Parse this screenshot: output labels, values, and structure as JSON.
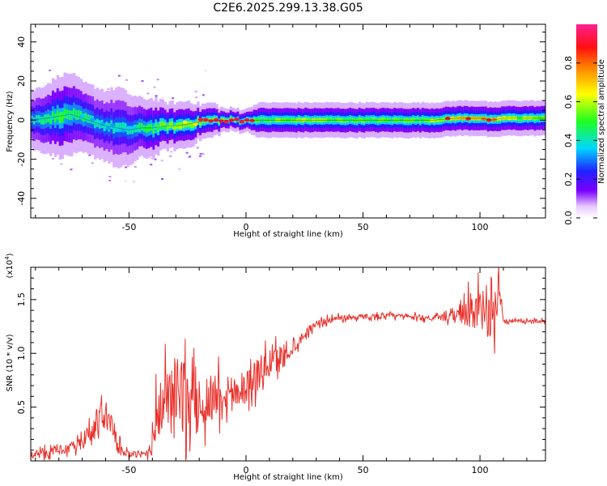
{
  "title": "C2E6.2025.299.13.38.G05",
  "chart_data": [
    {
      "type": "heatmap",
      "name": "spectrogram",
      "xlabel": "Height of straight line (km)",
      "ylabel": "Frequency (Hz)",
      "xlim": [
        -92,
        128
      ],
      "ylim": [
        -50,
        49
      ],
      "xticks": [
        -50,
        0,
        50,
        100
      ],
      "yticks": [
        -40,
        -20,
        0,
        20,
        40
      ],
      "colorbar": {
        "label": "Normalized spectral amplitude",
        "range": [
          0,
          1
        ],
        "ticks": [
          0.0,
          0.2,
          0.4,
          0.6,
          0.8
        ]
      },
      "ridge": {
        "x": [
          -92,
          -85,
          -80,
          -75,
          -70,
          -65,
          -60,
          -55,
          -50,
          -45,
          -40,
          -35,
          -30,
          -25,
          -20,
          -15,
          -10,
          -5,
          0,
          5,
          10,
          20,
          30,
          40,
          50,
          60,
          70,
          80,
          90,
          100,
          105,
          110,
          120,
          128
        ],
        "freq": [
          0,
          1,
          2,
          3,
          1,
          -1,
          -3,
          -4,
          -5,
          -4,
          -4,
          -3,
          -3,
          -2,
          -1,
          0,
          0,
          0,
          0,
          0,
          0,
          0,
          0,
          0,
          0,
          0,
          0,
          0,
          1,
          1,
          0,
          1,
          1,
          1
        ],
        "spread": [
          5,
          6,
          7,
          7,
          6,
          6,
          6,
          7,
          6,
          5,
          5,
          4,
          4,
          4,
          3,
          3,
          2,
          2,
          2,
          3,
          3,
          3,
          3,
          3,
          3,
          3,
          3,
          3,
          3,
          3,
          3,
          3,
          3,
          3
        ],
        "amplitude": [
          0.35,
          0.4,
          0.45,
          0.4,
          0.4,
          0.35,
          0.35,
          0.35,
          0.35,
          0.4,
          0.45,
          0.5,
          0.55,
          0.6,
          0.7,
          0.95,
          0.95,
          0.95,
          0.95,
          0.5,
          0.5,
          0.55,
          0.55,
          0.5,
          0.5,
          0.5,
          0.5,
          0.55,
          0.7,
          0.75,
          0.9,
          0.6,
          0.55,
          0.55
        ]
      }
    },
    {
      "type": "line",
      "name": "snr",
      "xlabel": "Height of straight line (km)",
      "ylabel": "SNR (10 * v/v)",
      "ylabel_multiplier": "(x10",
      "ylabel_multiplier_exp": "4",
      "ylabel_multiplier_close": ")",
      "xlim": [
        -92,
        128
      ],
      "ylim": [
        0,
        1.8
      ],
      "xticks": [
        -50,
        0,
        50,
        100
      ],
      "yticks": [
        0.5,
        1.0,
        1.5
      ],
      "line_color": "#e8302a",
      "series": {
        "x": [
          -92,
          -85,
          -80,
          -75,
          -70,
          -65,
          -62,
          -58,
          -55,
          -50,
          -45,
          -42,
          -40,
          -38,
          -35,
          -30,
          -27,
          -25,
          -22,
          -20,
          -15,
          -10,
          -5,
          0,
          5,
          10,
          15,
          20,
          25,
          30,
          40,
          50,
          60,
          70,
          80,
          85,
          90,
          95,
          100,
          105,
          107,
          108,
          110,
          120,
          128
        ],
        "y": [
          0.06,
          0.08,
          0.1,
          0.12,
          0.16,
          0.3,
          0.45,
          0.35,
          0.15,
          0.06,
          0.05,
          0.08,
          0.2,
          0.45,
          0.55,
          0.65,
          0.6,
          0.55,
          0.5,
          0.5,
          0.6,
          0.65,
          0.65,
          0.7,
          0.8,
          0.9,
          0.97,
          1.05,
          1.18,
          1.28,
          1.33,
          1.34,
          1.35,
          1.34,
          1.33,
          1.33,
          1.34,
          1.4,
          1.38,
          1.32,
          1.45,
          1.7,
          1.3,
          1.3,
          1.3
        ],
        "noise": [
          0.04,
          0.05,
          0.05,
          0.06,
          0.08,
          0.15,
          0.18,
          0.15,
          0.08,
          0.03,
          0.03,
          0.06,
          0.2,
          0.3,
          0.35,
          0.4,
          0.45,
          0.4,
          0.35,
          0.3,
          0.3,
          0.25,
          0.2,
          0.2,
          0.2,
          0.18,
          0.15,
          0.08,
          0.05,
          0.04,
          0.03,
          0.03,
          0.03,
          0.03,
          0.03,
          0.04,
          0.08,
          0.2,
          0.25,
          0.25,
          0.3,
          0.1,
          0.02,
          0.02,
          0.02
        ]
      }
    }
  ]
}
